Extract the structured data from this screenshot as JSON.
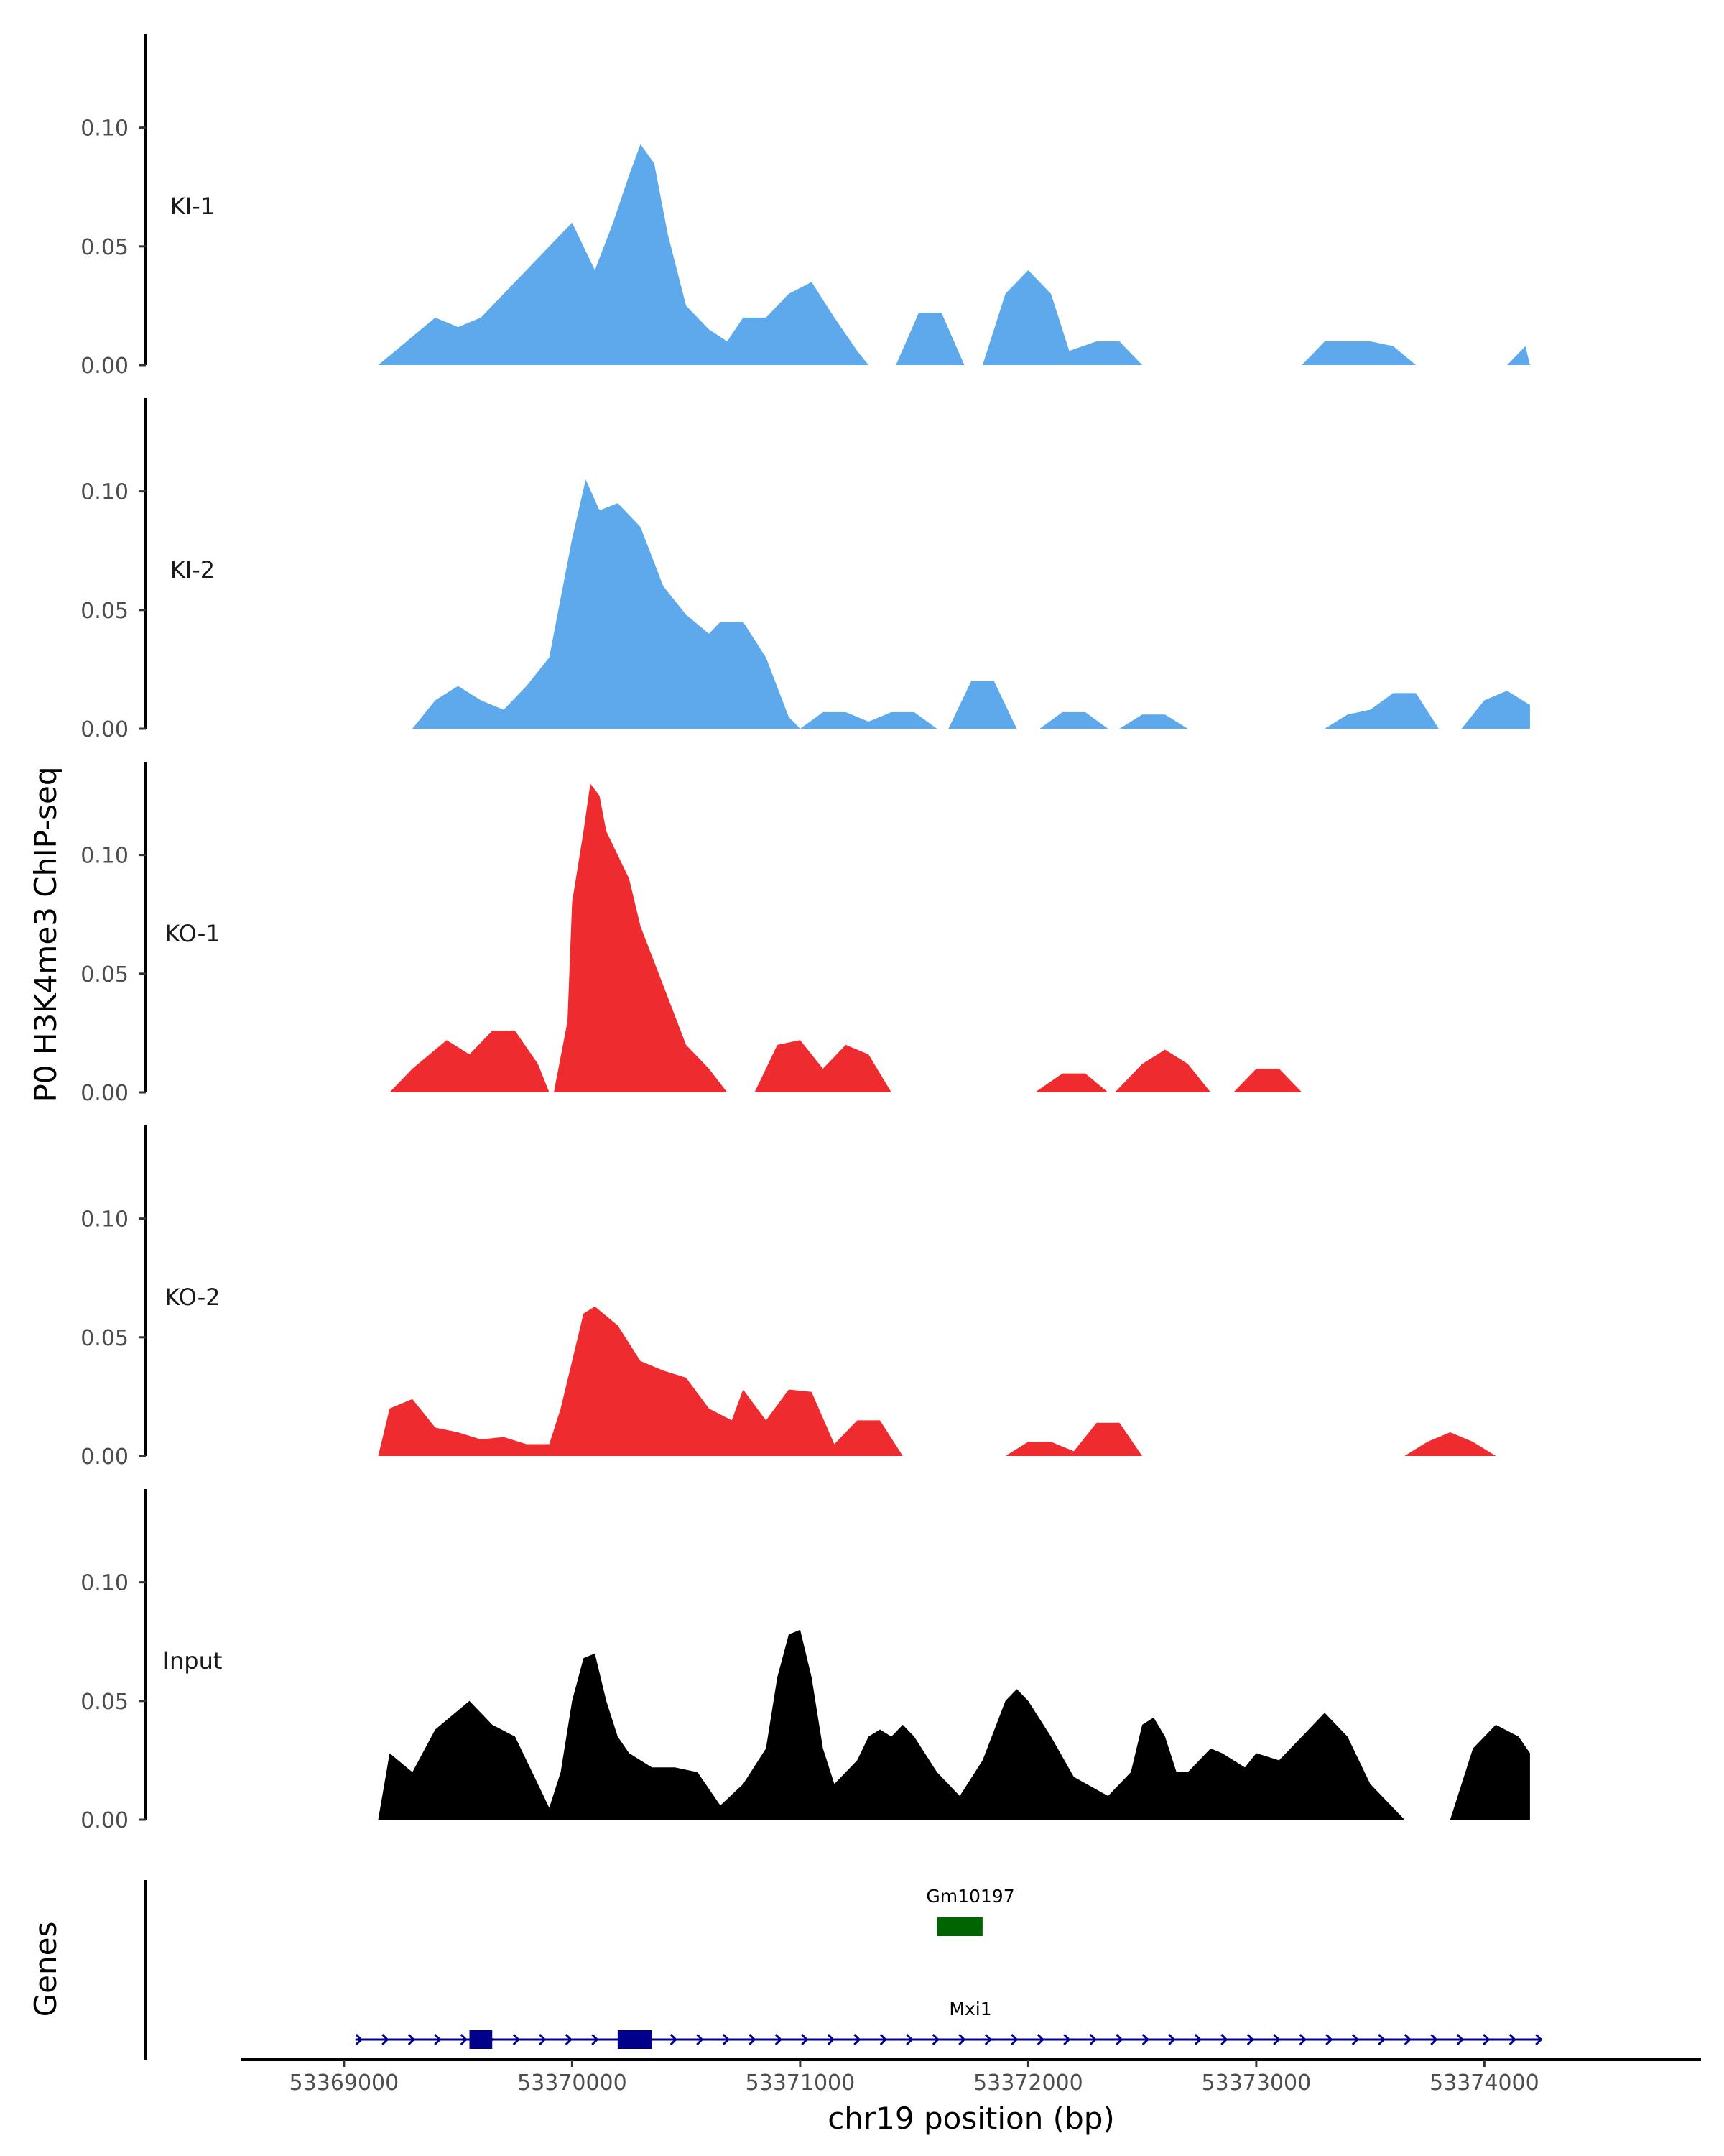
{
  "chart_data": {
    "type": "area",
    "title": "",
    "ylabel": "P0 H3K4me3 ChIP-seq",
    "xlabel": "chr19 position (bp)",
    "x_range": [
      53368550,
      53374950
    ],
    "ylim": [
      0,
      0.135
    ],
    "y_ticks": [
      0.0,
      0.05,
      0.1
    ],
    "y_tick_labels": [
      "0.00",
      "0.05",
      "0.10"
    ],
    "x_ticks": [
      53369000,
      53370000,
      53371000,
      53372000,
      53373000,
      53374000
    ],
    "x_tick_labels": [
      "53369000",
      "53370000",
      "53371000",
      "53372000",
      "53373000",
      "53374000"
    ],
    "tracks": [
      {
        "name": "KI-1",
        "color": "#5DA9EB",
        "segments": [
          [
            [
              53369150,
              0
            ],
            [
              53369250,
              0.008
            ],
            [
              53369400,
              0.02
            ],
            [
              53369500,
              0.016
            ],
            [
              53369600,
              0.02
            ],
            [
              53369700,
              0.03
            ],
            [
              53369800,
              0.04
            ],
            [
              53369900,
              0.05
            ],
            [
              53370000,
              0.06
            ],
            [
              53370100,
              0.04
            ],
            [
              53370180,
              0.06
            ],
            [
              53370250,
              0.08
            ],
            [
              53370300,
              0.093
            ],
            [
              53370360,
              0.085
            ],
            [
              53370420,
              0.055
            ],
            [
              53370500,
              0.025
            ],
            [
              53370600,
              0.015
            ],
            [
              53370680,
              0.01
            ],
            [
              53370750,
              0.02
            ],
            [
              53370850,
              0.02
            ],
            [
              53370950,
              0.03
            ],
            [
              53371050,
              0.035
            ],
            [
              53371150,
              0.02
            ],
            [
              53371250,
              0.006
            ],
            [
              53371300,
              0
            ]
          ],
          [
            [
              53371420,
              0
            ],
            [
              53371520,
              0.022
            ],
            [
              53371620,
              0.022
            ],
            [
              53371720,
              0
            ]
          ],
          [
            [
              53371800,
              0
            ],
            [
              53371900,
              0.03
            ],
            [
              53372000,
              0.04
            ],
            [
              53372100,
              0.03
            ],
            [
              53372180,
              0.006
            ],
            [
              53372300,
              0.01
            ],
            [
              53372400,
              0.01
            ],
            [
              53372500,
              0
            ]
          ],
          [
            [
              53373200,
              0
            ],
            [
              53373300,
              0.01
            ],
            [
              53373500,
              0.01
            ],
            [
              53373600,
              0.008
            ],
            [
              53373700,
              0
            ]
          ],
          [
            [
              53374100,
              0
            ],
            [
              53374180,
              0.008
            ],
            [
              53374200,
              0
            ]
          ]
        ]
      },
      {
        "name": "KI-2",
        "color": "#5DA9EB",
        "segments": [
          [
            [
              53369300,
              0
            ],
            [
              53369400,
              0.012
            ],
            [
              53369500,
              0.018
            ],
            [
              53369600,
              0.012
            ],
            [
              53369700,
              0.008
            ],
            [
              53369800,
              0.018
            ],
            [
              53369900,
              0.03
            ],
            [
              53370000,
              0.08
            ],
            [
              53370060,
              0.105
            ],
            [
              53370120,
              0.092
            ],
            [
              53370200,
              0.095
            ],
            [
              53370300,
              0.085
            ],
            [
              53370400,
              0.06
            ],
            [
              53370500,
              0.048
            ],
            [
              53370600,
              0.04
            ],
            [
              53370650,
              0.045
            ],
            [
              53370750,
              0.045
            ],
            [
              53370850,
              0.03
            ],
            [
              53370950,
              0.005
            ],
            [
              53371000,
              0
            ]
          ],
          [
            [
              53371000,
              0
            ],
            [
              53371100,
              0.007
            ],
            [
              53371200,
              0.007
            ],
            [
              53371300,
              0.003
            ],
            [
              53371400,
              0.007
            ],
            [
              53371500,
              0.007
            ],
            [
              53371600,
              0
            ]
          ],
          [
            [
              53371650,
              0
            ],
            [
              53371750,
              0.02
            ],
            [
              53371850,
              0.02
            ],
            [
              53371950,
              0
            ]
          ],
          [
            [
              53372050,
              0
            ],
            [
              53372150,
              0.007
            ],
            [
              53372250,
              0.007
            ],
            [
              53372350,
              0
            ]
          ],
          [
            [
              53372400,
              0
            ],
            [
              53372500,
              0.006
            ],
            [
              53372600,
              0.006
            ],
            [
              53372700,
              0
            ]
          ],
          [
            [
              53373300,
              0
            ],
            [
              53373400,
              0.006
            ],
            [
              53373500,
              0.008
            ],
            [
              53373600,
              0.015
            ],
            [
              53373700,
              0.015
            ],
            [
              53373800,
              0
            ]
          ],
          [
            [
              53373900,
              0
            ],
            [
              53374000,
              0.012
            ],
            [
              53374100,
              0.016
            ],
            [
              53374200,
              0.01
            ],
            [
              53374200,
              0
            ]
          ]
        ]
      },
      {
        "name": "KO-1",
        "color": "#EE2B2E",
        "segments": [
          [
            [
              53369200,
              0
            ],
            [
              53369300,
              0.01
            ],
            [
              53369450,
              0.022
            ],
            [
              53369550,
              0.016
            ],
            [
              53369650,
              0.026
            ],
            [
              53369750,
              0.026
            ],
            [
              53369850,
              0.012
            ],
            [
              53369900,
              0
            ]
          ],
          [
            [
              53369920,
              0
            ],
            [
              53369980,
              0.03
            ],
            [
              53370000,
              0.08
            ],
            [
              53370050,
              0.11
            ],
            [
              53370080,
              0.13
            ],
            [
              53370120,
              0.125
            ],
            [
              53370150,
              0.11
            ],
            [
              53370200,
              0.1
            ],
            [
              53370250,
              0.09
            ],
            [
              53370300,
              0.07
            ],
            [
              53370400,
              0.045
            ],
            [
              53370500,
              0.02
            ],
            [
              53370600,
              0.01
            ],
            [
              53370680,
              0
            ]
          ],
          [
            [
              53370800,
              0
            ],
            [
              53370900,
              0.02
            ],
            [
              53371000,
              0.022
            ],
            [
              53371100,
              0.01
            ],
            [
              53371200,
              0.02
            ],
            [
              53371300,
              0.016
            ],
            [
              53371400,
              0
            ]
          ],
          [
            [
              53372030,
              0
            ],
            [
              53372150,
              0.008
            ],
            [
              53372250,
              0.008
            ],
            [
              53372350,
              0
            ]
          ],
          [
            [
              53372380,
              0
            ],
            [
              53372500,
              0.012
            ],
            [
              53372600,
              0.018
            ],
            [
              53372700,
              0.012
            ],
            [
              53372800,
              0
            ]
          ],
          [
            [
              53372900,
              0
            ],
            [
              53373000,
              0.01
            ],
            [
              53373100,
              0.01
            ],
            [
              53373200,
              0
            ]
          ]
        ]
      },
      {
        "name": "KO-2",
        "color": "#EE2B2E",
        "segments": [
          [
            [
              53369150,
              0
            ],
            [
              53369200,
              0.02
            ],
            [
              53369300,
              0.024
            ],
            [
              53369400,
              0.012
            ],
            [
              53369500,
              0.01
            ],
            [
              53369600,
              0.007
            ],
            [
              53369700,
              0.008
            ],
            [
              53369800,
              0.005
            ],
            [
              53369900,
              0.005
            ],
            [
              53369950,
              0.02
            ],
            [
              53370000,
              0.04
            ],
            [
              53370050,
              0.06
            ],
            [
              53370100,
              0.063
            ],
            [
              53370200,
              0.055
            ],
            [
              53370300,
              0.04
            ],
            [
              53370400,
              0.036
            ],
            [
              53370500,
              0.033
            ],
            [
              53370600,
              0.02
            ],
            [
              53370700,
              0.015
            ],
            [
              53370750,
              0.028
            ],
            [
              53370850,
              0.015
            ],
            [
              53370950,
              0.028
            ],
            [
              53371050,
              0.027
            ],
            [
              53371150,
              0.005
            ],
            [
              53371250,
              0.015
            ],
            [
              53371350,
              0.015
            ],
            [
              53371450,
              0
            ]
          ],
          [
            [
              53371900,
              0
            ],
            [
              53372000,
              0.006
            ],
            [
              53372100,
              0.006
            ],
            [
              53372200,
              0.002
            ],
            [
              53372300,
              0.014
            ],
            [
              53372400,
              0.014
            ],
            [
              53372500,
              0
            ]
          ],
          [
            [
              53373650,
              0
            ],
            [
              53373750,
              0.006
            ],
            [
              53373850,
              0.01
            ],
            [
              53373950,
              0.006
            ],
            [
              53374050,
              0
            ]
          ]
        ]
      },
      {
        "name": "Input",
        "color": "#000000",
        "segments": [
          [
            [
              53369150,
              0
            ],
            [
              53369200,
              0.028
            ],
            [
              53369300,
              0.02
            ],
            [
              53369400,
              0.038
            ],
            [
              53369500,
              0.046
            ],
            [
              53369550,
              0.05
            ],
            [
              53369650,
              0.04
            ],
            [
              53369750,
              0.035
            ],
            [
              53369850,
              0.015
            ],
            [
              53369900,
              0.005
            ],
            [
              53369950,
              0.02
            ],
            [
              53370000,
              0.05
            ],
            [
              53370050,
              0.068
            ],
            [
              53370100,
              0.07
            ],
            [
              53370150,
              0.05
            ],
            [
              53370200,
              0.035
            ],
            [
              53370250,
              0.028
            ],
            [
              53370350,
              0.022
            ],
            [
              53370450,
              0.022
            ],
            [
              53370550,
              0.02
            ],
            [
              53370650,
              0.006
            ],
            [
              53370750,
              0.015
            ],
            [
              53370850,
              0.03
            ],
            [
              53370900,
              0.06
            ],
            [
              53370950,
              0.078
            ],
            [
              53371000,
              0.08
            ],
            [
              53371050,
              0.06
            ],
            [
              53371100,
              0.03
            ],
            [
              53371150,
              0.015
            ],
            [
              53371250,
              0.025
            ],
            [
              53371300,
              0.035
            ],
            [
              53371350,
              0.038
            ],
            [
              53371400,
              0.035
            ],
            [
              53371450,
              0.04
            ],
            [
              53371500,
              0.035
            ],
            [
              53371600,
              0.02
            ],
            [
              53371700,
              0.01
            ],
            [
              53371800,
              0.025
            ],
            [
              53371900,
              0.05
            ],
            [
              53371950,
              0.055
            ],
            [
              53372000,
              0.05
            ],
            [
              53372100,
              0.035
            ],
            [
              53372200,
              0.018
            ],
            [
              53372350,
              0.01
            ],
            [
              53372450,
              0.02
            ],
            [
              53372500,
              0.04
            ],
            [
              53372550,
              0.043
            ],
            [
              53372600,
              0.035
            ],
            [
              53372650,
              0.02
            ],
            [
              53372700,
              0.02
            ],
            [
              53372800,
              0.03
            ],
            [
              53372850,
              0.028
            ],
            [
              53372950,
              0.022
            ],
            [
              53373000,
              0.028
            ],
            [
              53373100,
              0.025
            ],
            [
              53373200,
              0.035
            ],
            [
              53373300,
              0.045
            ],
            [
              53373400,
              0.035
            ],
            [
              53373500,
              0.015
            ],
            [
              53373650,
              0
            ]
          ],
          [
            [
              53373850,
              0
            ],
            [
              53373950,
              0.03
            ],
            [
              53374050,
              0.04
            ],
            [
              53374150,
              0.035
            ],
            [
              53374200,
              0.028
            ],
            [
              53374200,
              0
            ]
          ]
        ]
      }
    ],
    "genes_track_label": "Genes",
    "genes": [
      {
        "name": "Gm10197",
        "color": "#006400",
        "start": 53371600,
        "end": 53371800,
        "exons": [
          [
            53371600,
            53371800
          ]
        ]
      },
      {
        "name": "Mxi1",
        "color": "#00008B",
        "start": 53369050,
        "end": 53374250,
        "exons": [
          [
            53369550,
            53369650
          ],
          [
            53370200,
            53370350
          ]
        ]
      }
    ]
  }
}
